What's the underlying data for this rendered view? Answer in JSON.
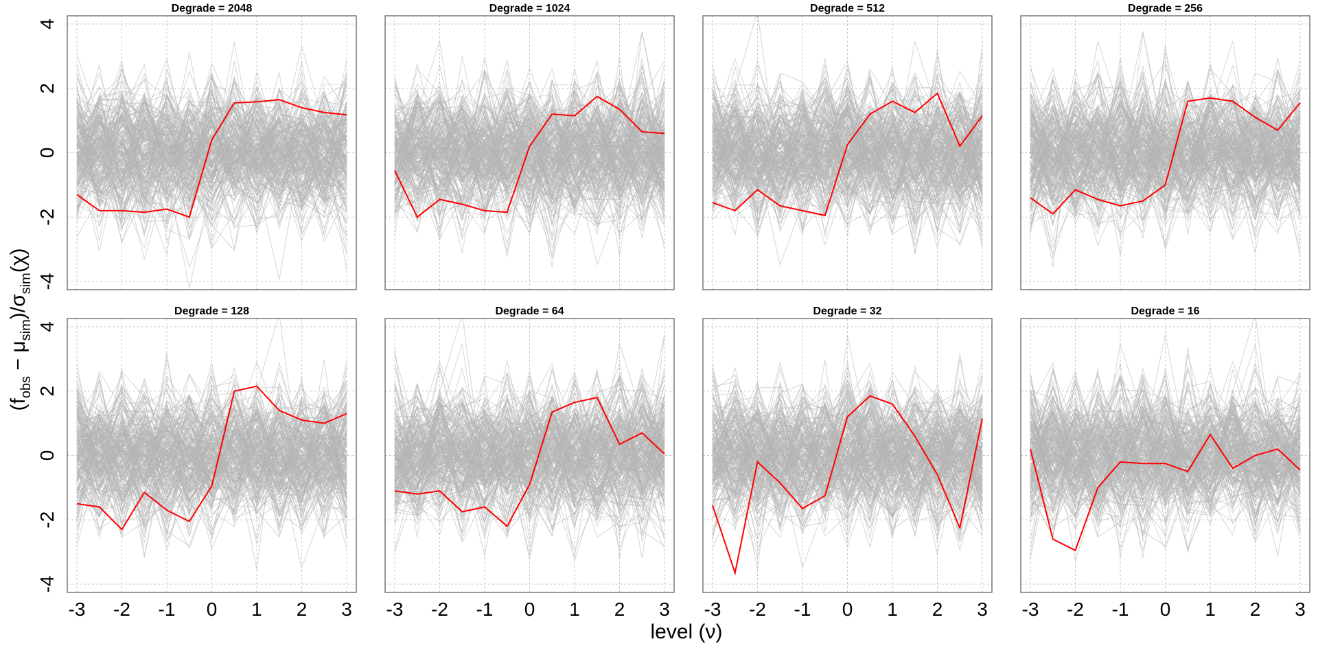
{
  "chart_data": {
    "type": "line",
    "xlabel": "level (ν)",
    "ylabel": "(f_obs − μ_sim) / σ_sim(χ)",
    "ylabel_parts": {
      "open": "(f",
      "obs": "obs",
      "minus": " − μ",
      "sim1": "sim",
      "close": ")",
      "slash": "/",
      "sigma": "σ",
      "sim2": "sim",
      "chi": "(χ)"
    },
    "xlim": [
      -3,
      3
    ],
    "ylim": [
      -4,
      4
    ],
    "x_ticks": [
      "-3",
      "-2",
      "-1",
      "0",
      "1",
      "2",
      "3"
    ],
    "y_ticks": [
      "-4",
      "-2",
      "0",
      "2",
      "4"
    ],
    "grid": true,
    "layout": "2x4",
    "colors": {
      "observed": "#ff0000",
      "simulated": "#b4b4b4"
    },
    "panels": [
      {
        "title": "Degrade = 2048",
        "x": [
          -3,
          -2.5,
          -2,
          -1.5,
          -1,
          -0.5,
          0,
          0.5,
          1,
          1.5,
          2,
          2.5,
          3
        ],
        "observed": [
          -1.3,
          -1.8,
          -1.8,
          -1.85,
          -1.75,
          -2.0,
          0.4,
          1.55,
          1.58,
          1.65,
          1.4,
          1.25,
          1.18
        ]
      },
      {
        "title": "Degrade = 1024",
        "x": [
          -3,
          -2.5,
          -2,
          -1.5,
          -1,
          -0.5,
          0,
          0.5,
          1,
          1.5,
          2,
          2.5,
          3
        ],
        "observed": [
          -0.55,
          -2.0,
          -1.45,
          -1.6,
          -1.8,
          -1.85,
          0.2,
          1.2,
          1.15,
          1.75,
          1.35,
          0.65,
          0.6
        ]
      },
      {
        "title": "Degrade = 512",
        "x": [
          -3,
          -2.5,
          -2,
          -1.5,
          -1,
          -0.5,
          0,
          0.5,
          1,
          1.5,
          2,
          2.5,
          3
        ],
        "observed": [
          -1.55,
          -1.8,
          -1.15,
          -1.65,
          -1.8,
          -1.95,
          0.25,
          1.2,
          1.6,
          1.25,
          1.85,
          0.2,
          1.15
        ]
      },
      {
        "title": "Degrade = 256",
        "x": [
          -3,
          -2.5,
          -2,
          -1.5,
          -1,
          -0.5,
          0,
          0.5,
          1,
          1.5,
          2,
          2.5,
          3
        ],
        "observed": [
          -1.4,
          -1.9,
          -1.15,
          -1.45,
          -1.65,
          -1.5,
          -1.0,
          1.6,
          1.7,
          1.6,
          1.1,
          0.7,
          1.55
        ]
      },
      {
        "title": "Degrade = 128",
        "x": [
          -3,
          -2.5,
          -2,
          -1.5,
          -1,
          -0.5,
          0,
          0.5,
          1,
          1.5,
          2,
          2.5,
          3
        ],
        "observed": [
          -1.5,
          -1.6,
          -2.3,
          -1.15,
          -1.7,
          -2.05,
          -0.95,
          2.0,
          2.15,
          1.4,
          1.1,
          1.0,
          1.3
        ]
      },
      {
        "title": "Degrade = 64",
        "x": [
          -3,
          -2.5,
          -2,
          -1.5,
          -1,
          -0.5,
          0,
          0.5,
          1,
          1.5,
          2,
          2.5,
          3
        ],
        "observed": [
          -1.1,
          -1.2,
          -1.1,
          -1.75,
          -1.6,
          -2.2,
          -0.9,
          1.35,
          1.65,
          1.8,
          0.35,
          0.7,
          0.05
        ]
      },
      {
        "title": "Degrade = 32",
        "x": [
          -3,
          -2.5,
          -2,
          -1.5,
          -1,
          -0.5,
          0,
          0.5,
          1,
          1.5,
          2,
          2.5,
          3
        ],
        "observed": [
          -1.55,
          -3.65,
          -0.2,
          -0.85,
          -1.65,
          -1.25,
          1.2,
          1.85,
          1.6,
          0.6,
          -0.6,
          -2.25,
          1.15
        ]
      },
      {
        "title": "Degrade = 16",
        "x": [
          -3,
          -2.5,
          -2,
          -1.5,
          -1,
          -0.5,
          0,
          0.5,
          1,
          1.5,
          2,
          2.5,
          3
        ],
        "observed": [
          0.2,
          -2.6,
          -2.95,
          -1.0,
          -0.2,
          -0.25,
          -0.25,
          -0.5,
          0.65,
          -0.4,
          0.0,
          0.2,
          -0.45
        ]
      }
    ]
  }
}
